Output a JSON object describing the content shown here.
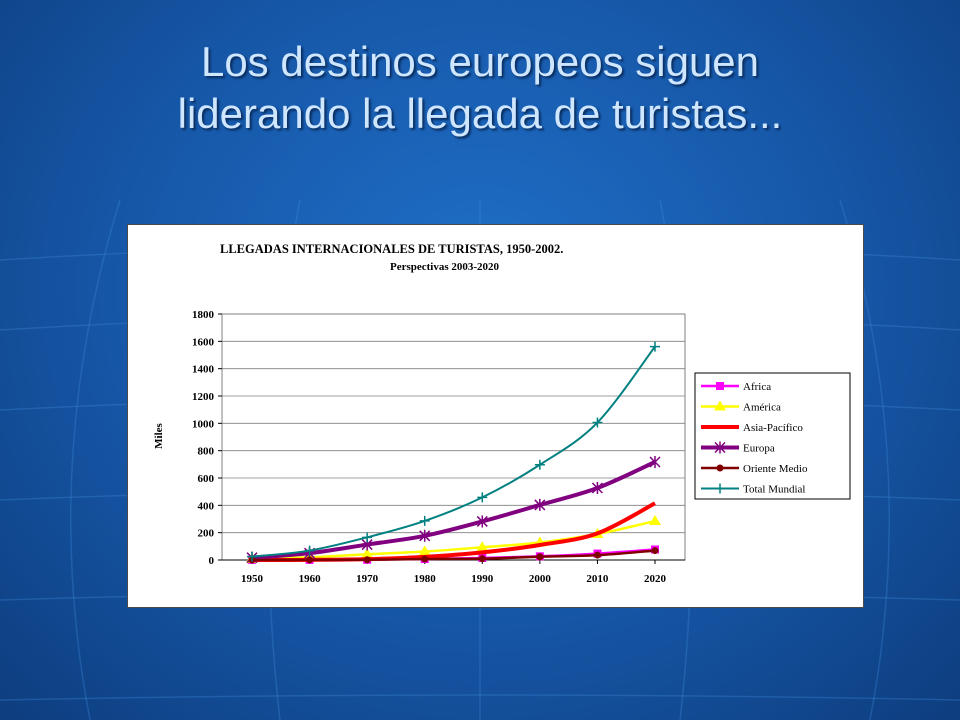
{
  "slide": {
    "title_lines": [
      "Los destinos europeos siguen",
      "liderando la llegada de turistas..."
    ]
  },
  "chart_data": {
    "type": "line",
    "title": "LLEGADAS INTERNACIONALES DE TURISTAS, 1950-2002.",
    "subtitle": "Perspectivas 2003-2020",
    "ylabel": "Miles",
    "xlabel": "",
    "ylim": [
      0,
      1800
    ],
    "yticks": [
      0,
      200,
      400,
      600,
      800,
      1000,
      1200,
      1400,
      1600,
      1800
    ],
    "categories": [
      "1950",
      "1960",
      "1970",
      "1980",
      "1990",
      "2000",
      "2010",
      "2020"
    ],
    "grid": true,
    "legend_position": "right",
    "series": [
      {
        "name": "Africa",
        "color": "#ff00ff",
        "marker": "square",
        "values": [
          1,
          1,
          2,
          7,
          15,
          27,
          47,
          77
        ]
      },
      {
        "name": "América",
        "color": "#ffff00",
        "marker": "triangle",
        "values": [
          8,
          20,
          42,
          62,
          93,
          128,
          190,
          285
        ]
      },
      {
        "name": "Asia-Pacífico",
        "color": "#ff0000",
        "marker": "none",
        "values": [
          0,
          1,
          6,
          23,
          56,
          110,
          195,
          415
        ]
      },
      {
        "name": "Europa",
        "color": "#800080",
        "marker": "star",
        "values": [
          17,
          50,
          113,
          177,
          282,
          403,
          527,
          717
        ]
      },
      {
        "name": "Oriente Medio",
        "color": "#800000",
        "marker": "circle",
        "values": [
          0,
          1,
          2,
          7,
          10,
          24,
          36,
          69
        ]
      },
      {
        "name": "Total Mundial",
        "color": "#008080",
        "marker": "plus",
        "values": [
          25,
          69,
          166,
          286,
          458,
          697,
          1006,
          1561
        ]
      }
    ]
  }
}
